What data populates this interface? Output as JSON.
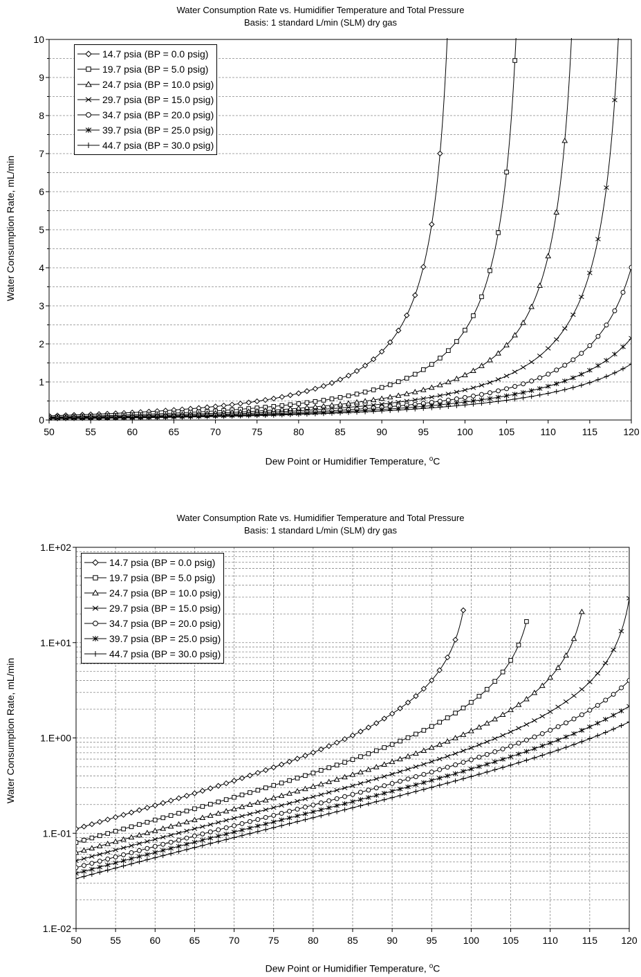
{
  "chart_data": [
    {
      "type": "line",
      "title": "Water Consumption Rate vs. Humidifier Temperature and Total Pressure",
      "subtitle": "Basis: 1 standard L/min (SLM) dry gas",
      "xlabel": "Dew Point or Humidifier Temperature, °C",
      "xlabel_text": "Dew Point or Humidifier Temperature,",
      "xlabel_sup": "o",
      "xlabel_unit": "C",
      "ylabel": "Water Consumption Rate, mL/min",
      "xlim": [
        50,
        120
      ],
      "ylim": [
        0,
        10
      ],
      "yscale": "linear",
      "xticks": [
        "50",
        "55",
        "60",
        "65",
        "70",
        "75",
        "80",
        "85",
        "90",
        "95",
        "100",
        "105",
        "110",
        "115",
        "120"
      ],
      "yticks": [
        "0",
        "1",
        "2",
        "3",
        "4",
        "5",
        "6",
        "7",
        "8",
        "9",
        "10"
      ],
      "grid": "horizontal dashed",
      "legend_position": "top-left",
      "series": [
        {
          "name": "14.7 psia (BP = 0.0 psig)",
          "marker": "diamond",
          "total_psia": 14.7
        },
        {
          "name": "19.7 psia (BP = 5.0 psig)",
          "marker": "square",
          "total_psia": 19.7
        },
        {
          "name": "24.7 psia (BP = 10.0 psig)",
          "marker": "triangle",
          "total_psia": 24.7
        },
        {
          "name": "29.7 psia (BP = 15.0 psig)",
          "marker": "x",
          "total_psia": 29.7
        },
        {
          "name": "34.7 psia (BP = 20.0 psig)",
          "marker": "circle",
          "total_psia": 34.7
        },
        {
          "name": "39.7 psia (BP = 25.0 psig)",
          "marker": "star",
          "total_psia": 39.7
        },
        {
          "name": "44.7 psia (BP = 30.0 psig)",
          "marker": "plus",
          "total_psia": 44.7
        }
      ]
    },
    {
      "type": "line",
      "title": "Water Consumption Rate vs. Humidifier Temperature and Total Pressure",
      "subtitle": "Basis: 1 standard L/min (SLM) dry gas",
      "xlabel": "Dew Point or Humidifier Temperature, °C",
      "xlabel_text": "Dew Point or Humidifier Temperature,",
      "xlabel_sup": "o",
      "xlabel_unit": "C",
      "ylabel": "Water Consumption Rate, mL/min",
      "xlim": [
        50,
        120
      ],
      "ylim": [
        0.01,
        100
      ],
      "yscale": "log",
      "xticks": [
        "50",
        "55",
        "60",
        "65",
        "70",
        "75",
        "80",
        "85",
        "90",
        "95",
        "100",
        "105",
        "110",
        "115",
        "120"
      ],
      "yticks": [
        "1.E-02",
        "1.E-01",
        "1.E+00",
        "1.E+01",
        "1.E+02"
      ],
      "grid": "dashed major and minor",
      "legend_position": "top-left",
      "series": [
        {
          "name": "14.7 psia (BP = 0.0 psig)",
          "marker": "diamond",
          "total_psia": 14.7,
          "x_end": 99
        },
        {
          "name": "19.7 psia (BP = 5.0 psig)",
          "marker": "square",
          "total_psia": 19.7,
          "x_end": 107
        },
        {
          "name": "24.7 psia (BP = 10.0 psig)",
          "marker": "triangle",
          "total_psia": 24.7,
          "x_end": 114
        },
        {
          "name": "29.7 psia (BP = 15.0 psig)",
          "marker": "x",
          "total_psia": 29.7,
          "x_end": 120
        },
        {
          "name": "34.7 psia (BP = 20.0 psig)",
          "marker": "circle",
          "total_psia": 34.7,
          "x_end": 120
        },
        {
          "name": "39.7 psia (BP = 25.0 psig)",
          "marker": "star",
          "total_psia": 39.7,
          "x_end": 120
        },
        {
          "name": "44.7 psia (BP = 30.0 psig)",
          "marker": "plus",
          "total_psia": 44.7,
          "x_end": 120
        }
      ]
    }
  ]
}
